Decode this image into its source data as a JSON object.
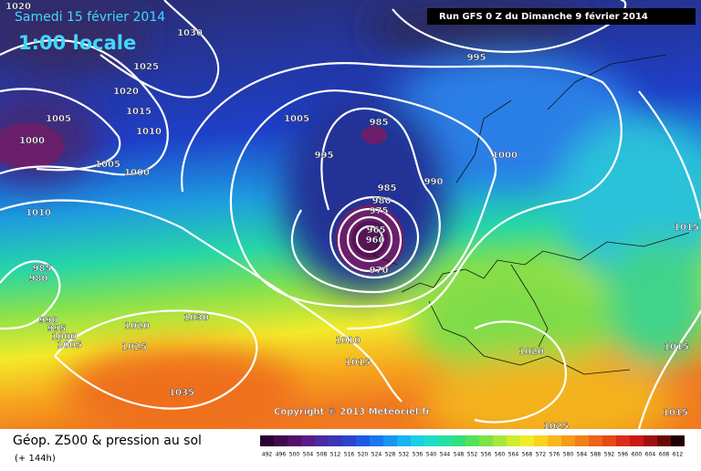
{
  "header": {
    "date": "Samedi 15 février 2014",
    "time": "1:00 locale",
    "run": "Run GFS 0 Z du Dimanche 9 février 2014"
  },
  "map": {
    "isobar_labels": [
      "1020",
      "1030",
      "1025",
      "1020",
      "1015",
      "1005",
      "1010",
      "1000",
      "1005",
      "1000",
      "1005",
      "995",
      "985",
      "995",
      "1000",
      "990",
      "985",
      "980",
      "975",
      "965",
      "960",
      "970",
      "1010",
      "985",
      "980",
      "990",
      "995",
      "1000",
      "1005",
      "1020",
      "1030",
      "1025",
      "1035",
      "1010",
      "1015",
      "1020",
      "1025",
      "1015",
      "1015",
      "1015"
    ],
    "copyright": "Copyright © 2013 Meteociel.fr"
  },
  "footer": {
    "title": "Géop. Z500 & pression au sol",
    "lead": "(+ 144h)",
    "scale": [
      "492",
      "496",
      "500",
      "504",
      "508",
      "512",
      "516",
      "520",
      "524",
      "528",
      "532",
      "536",
      "540",
      "544",
      "548",
      "552",
      "556",
      "560",
      "564",
      "568",
      "572",
      "576",
      "580",
      "584",
      "588",
      "592",
      "596",
      "600",
      "604",
      "608",
      "612"
    ]
  }
}
